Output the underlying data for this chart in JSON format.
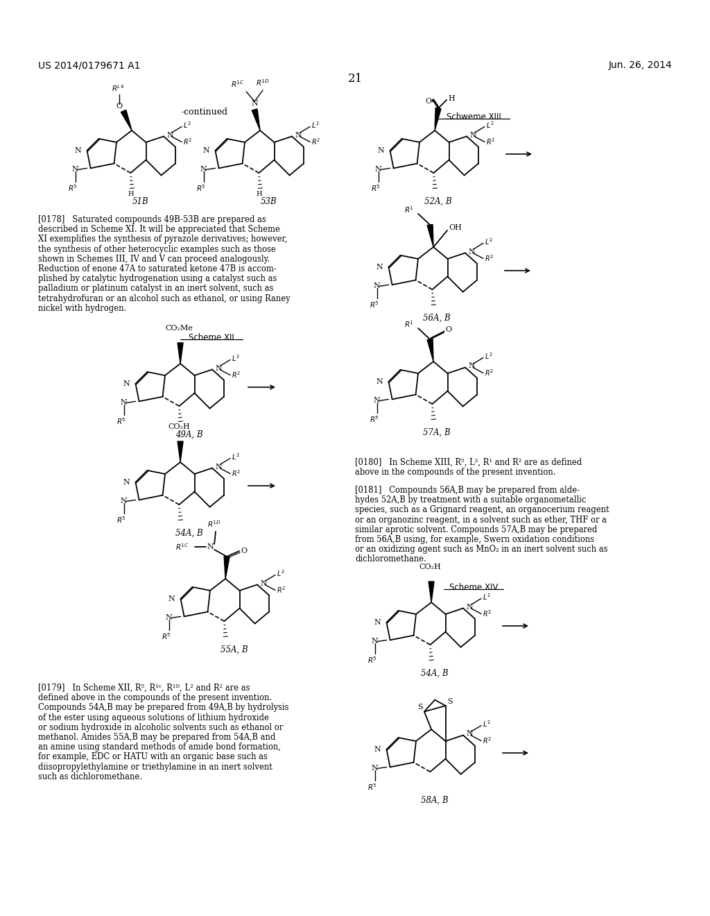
{
  "patent_number": "US 2014/0179671 A1",
  "patent_date": "Jun. 26, 2014",
  "page_number": "21",
  "continued": "-continued",
  "scheme12": "Scheme XII",
  "scheme13": "Schweme XIII",
  "scheme14": "Scheme XIV",
  "para0178": "[0178]   Saturated compounds 49B-53B are prepared as described in Scheme XI. It will be appreciated that Scheme XI exemplifies the synthesis of pyrazole derivatives; however, the synthesis of other heterocyclic examples such as those shown in Schemes III, IV and V can proceed analogously. Reduction of enone 47A to saturated ketone 47B is accomplished by catalytic hydrogenation using a catalyst such as palladium or platinum catalyst in an inert solvent, such as tetrahydrofuran or an alcohol such as ethanol, or using Raney nickel with hydrogen.",
  "para0179": "[0179]   In Scheme XII, R5, R1C, R1D, L2 and R2 are as defined above in the compounds of the present invention. Compounds 54A,B may be prepared from 49A,B by hydrolysis of the ester using aqueous solutions of lithium hydroxide or sodium hydroxide in alcoholic solvents such as ethanol or methanol. Amides 55A,B may be prepared from 54A,B and an amine using standard methods of amide bond formation, for example, EDC or HATU with an organic base such as diisopropylethylamine or triethylamine in an inert solvent such as dichloromethane.",
  "para0180": "[0180]   In Scheme XIII, R5, L2, R1 and R2 are as defined above in the compounds of the present invention.",
  "para0181": "[0181]   Compounds 56A,B may be prepared from aldehydes 52A,B by treatment with a suitable organometallic species, such as a Grignard reagent, an organocerium reagent or an organozinc reagent, in a solvent such as ether, THF or a similar aprotic solvent. Compounds 57A,B may be prepared from 56A,B using, for example, Swern oxidation conditions or an oxidizing agent such as MnO2 in an inert solvent such as dichloromethane."
}
